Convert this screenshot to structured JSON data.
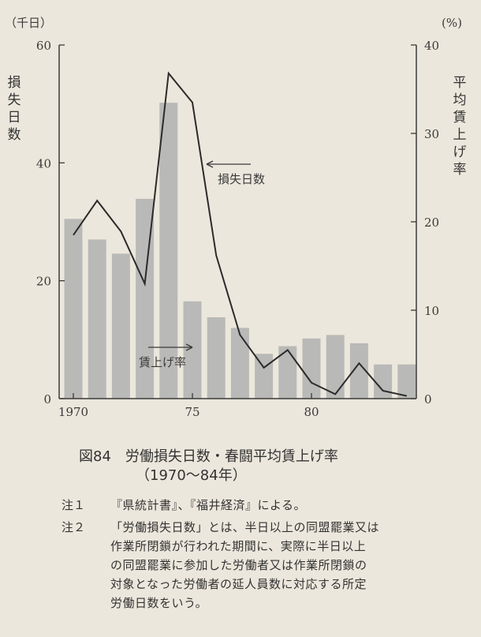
{
  "chart_data": {
    "type": "bar",
    "left_axis_unit": "（千日）",
    "right_axis_unit": "(%)",
    "left_axis_label": [
      "損",
      "失",
      "日",
      "数"
    ],
    "right_axis_label": [
      "平",
      "均",
      "賃",
      "上",
      "げ",
      "率"
    ],
    "ylim_left": [
      0,
      60
    ],
    "ylim_right": [
      0,
      40
    ],
    "left_ticks": [
      "0",
      "20",
      "40",
      "60"
    ],
    "right_ticks": [
      "0",
      "10",
      "20",
      "30",
      "40"
    ],
    "x_ticks": [
      "1970",
      "75",
      "80"
    ],
    "categories": [
      "1970",
      "1971",
      "1972",
      "1973",
      "1974",
      "1975",
      "1976",
      "1977",
      "1978",
      "1979",
      "1980",
      "1981",
      "1982",
      "1983",
      "1984"
    ],
    "series": [
      {
        "name": "損失日数",
        "type": "bar",
        "axis": "left",
        "values": [
          30.5,
          27.0,
          24.6,
          33.9,
          50.2,
          16.5,
          13.8,
          12.0,
          7.6,
          8.9,
          10.2,
          10.8,
          9.4,
          5.8,
          5.8
        ]
      },
      {
        "name": "賃上げ率",
        "type": "line",
        "axis": "right",
        "values": [
          18.5,
          22.4,
          18.9,
          13.0,
          36.8,
          33.5,
          16.2,
          7.2,
          3.5,
          5.5,
          1.8,
          0.5,
          4.0,
          0.9,
          0.3
        ]
      }
    ],
    "annotations": {
      "bar_label": "損失日数",
      "line_label": "賃上げ率"
    }
  },
  "caption": {
    "number": "図84",
    "title": "労働損失日数・春闘平均賃上げ率",
    "subtitle": "（1970〜84年）"
  },
  "notes": [
    {
      "label": "注１",
      "lines": [
        "『県統計書』、『福井経済』による。"
      ]
    },
    {
      "label": "注２",
      "lines": [
        "「労働損失日数」とは、半日以上の同盟罷業又は",
        "作業所閉鎖が行われた期間に、実際に半日以上",
        "の同盟罷業に参加した労働者又は作業所閉鎖の",
        "対象となった労働者の延人員数に対応する所定",
        "労働日数をいう。"
      ]
    }
  ],
  "colors": {
    "background": "#ece7dc",
    "bar": "#b9b9b7",
    "line": "#2b2b2b",
    "axis": "#3a3a3a"
  }
}
